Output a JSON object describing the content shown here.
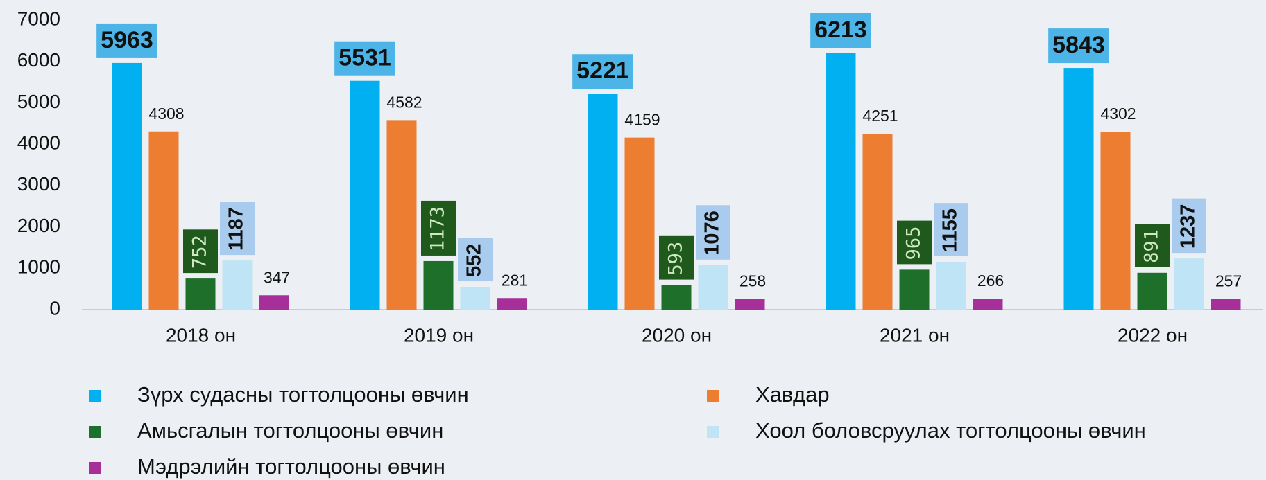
{
  "chart_data": {
    "type": "bar",
    "categories": [
      "2018 он",
      "2019 он",
      "2020 он",
      "2021 он",
      "2022 он"
    ],
    "series": [
      {
        "name": "Зүрх судасны тогтолцооны өвчин",
        "color": "#00b0f0",
        "values": [
          5963,
          5531,
          5221,
          6213,
          5843
        ]
      },
      {
        "name": "Хавдар",
        "color": "#ed7d31",
        "values": [
          4308,
          4582,
          4159,
          4251,
          4302
        ]
      },
      {
        "name": "Амьсгалын тогтолцооны өвчин",
        "color": "#1e6f2a",
        "values": [
          752,
          1173,
          593,
          965,
          891
        ]
      },
      {
        "name": "Хоол боловсруулах тогтолцооны өвчин",
        "color": "#bfe4f5",
        "values": [
          1187,
          552,
          1076,
          1155,
          1237
        ]
      },
      {
        "name": "Мэдрэлийн тогтолцооны өвчин",
        "color": "#a62f9a",
        "values": [
          347,
          281,
          258,
          266,
          257
        ]
      }
    ],
    "ylim": [
      0,
      7000
    ],
    "yticks": [
      0,
      1000,
      2000,
      3000,
      4000,
      5000,
      6000,
      7000
    ],
    "grid": false
  }
}
